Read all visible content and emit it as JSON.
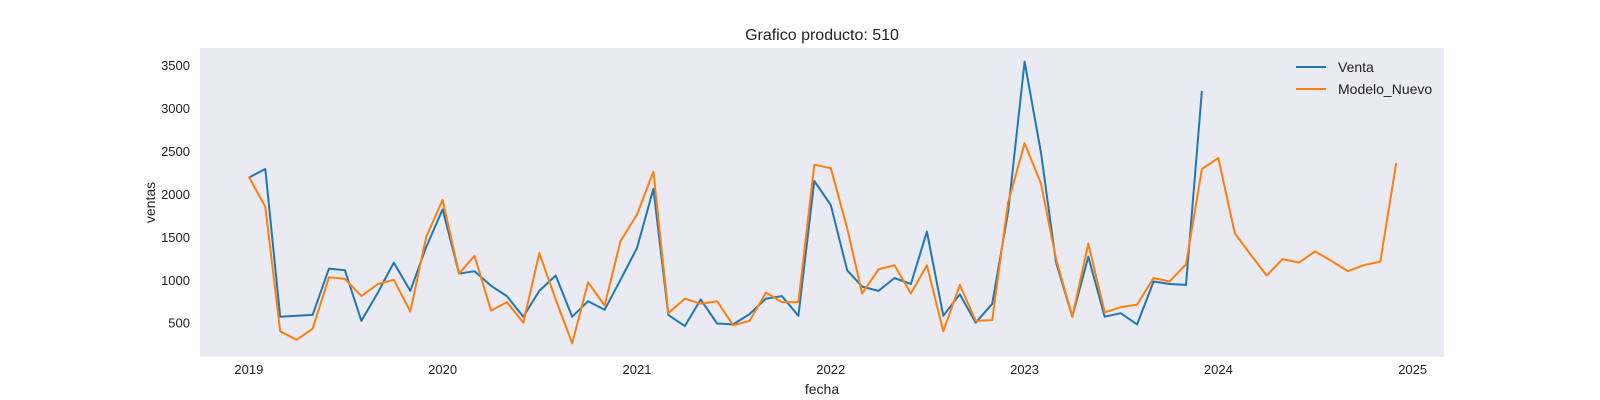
{
  "chart_data": {
    "type": "line",
    "title": "Grafico producto: 510",
    "xlabel": "fecha",
    "ylabel": "ventas",
    "x_range": [
      "2018-10-01",
      "2025-03-01"
    ],
    "ylim": [
      100,
      3700
    ],
    "x_ticks": [
      {
        "label": "2019",
        "date": "2019-01-01"
      },
      {
        "label": "2020",
        "date": "2020-01-01"
      },
      {
        "label": "2021",
        "date": "2021-01-01"
      },
      {
        "label": "2022",
        "date": "2022-01-01"
      },
      {
        "label": "2023",
        "date": "2023-01-01"
      },
      {
        "label": "2024",
        "date": "2024-01-01"
      },
      {
        "label": "2025",
        "date": "2025-01-01"
      }
    ],
    "y_ticks": [
      500,
      1000,
      1500,
      2000,
      2500,
      3000,
      3500
    ],
    "grid": false,
    "background": "#eaeaf2",
    "legend_position": "top-right",
    "series": [
      {
        "name": "Venta",
        "color": "#1f77b4",
        "x": [
          "2019-01-01",
          "2019-02-01",
          "2019-03-01",
          "2019-04-01",
          "2019-05-01",
          "2019-06-01",
          "2019-07-01",
          "2019-08-01",
          "2019-09-01",
          "2019-10-01",
          "2019-11-01",
          "2019-12-01",
          "2020-01-01",
          "2020-02-01",
          "2020-03-01",
          "2020-04-01",
          "2020-05-01",
          "2020-06-01",
          "2020-07-01",
          "2020-08-01",
          "2020-09-01",
          "2020-10-01",
          "2020-11-01",
          "2020-12-01",
          "2021-01-01",
          "2021-02-01",
          "2021-03-01",
          "2021-04-01",
          "2021-05-01",
          "2021-06-01",
          "2021-07-01",
          "2021-08-01",
          "2021-09-01",
          "2021-10-01",
          "2021-11-01",
          "2021-12-01",
          "2022-01-01",
          "2022-02-01",
          "2022-03-01",
          "2022-04-01",
          "2022-05-01",
          "2022-06-01",
          "2022-07-01",
          "2022-08-01",
          "2022-09-01",
          "2022-10-01",
          "2022-11-01",
          "2022-12-01",
          "2023-01-01",
          "2023-02-01",
          "2023-03-01",
          "2023-04-01",
          "2023-05-01",
          "2023-06-01",
          "2023-07-01",
          "2023-08-01",
          "2023-09-01",
          "2023-10-01",
          "2023-11-01",
          "2023-12-01"
        ],
        "y": [
          2190,
          2290,
          570,
          580,
          590,
          1130,
          1110,
          520,
          850,
          1200,
          870,
          1380,
          1820,
          1070,
          1100,
          930,
          810,
          570,
          870,
          1050,
          570,
          750,
          650,
          1000,
          1370,
          2060,
          590,
          460,
          770,
          490,
          480,
          600,
          780,
          810,
          580,
          2150,
          1870,
          1110,
          920,
          870,
          1020,
          950,
          1560,
          580,
          830,
          500,
          720,
          1790,
          3540,
          2480,
          1210,
          570,
          1270,
          570,
          610,
          480,
          980,
          950,
          940,
          3200
        ]
      },
      {
        "name": "Modelo_Nuevo",
        "color": "#ff7f0e",
        "x": [
          "2019-01-01",
          "2019-02-01",
          "2019-03-01",
          "2019-04-01",
          "2019-05-01",
          "2019-06-01",
          "2019-07-01",
          "2019-08-01",
          "2019-09-01",
          "2019-10-01",
          "2019-11-01",
          "2019-12-01",
          "2020-01-01",
          "2020-02-01",
          "2020-03-01",
          "2020-04-01",
          "2020-05-01",
          "2020-06-01",
          "2020-07-01",
          "2020-08-01",
          "2020-09-01",
          "2020-10-01",
          "2020-11-01",
          "2020-12-01",
          "2021-01-01",
          "2021-02-01",
          "2021-03-01",
          "2021-04-01",
          "2021-05-01",
          "2021-06-01",
          "2021-07-01",
          "2021-08-01",
          "2021-09-01",
          "2021-10-01",
          "2021-11-01",
          "2021-12-01",
          "2022-01-01",
          "2022-02-01",
          "2022-03-01",
          "2022-04-01",
          "2022-05-01",
          "2022-06-01",
          "2022-07-01",
          "2022-08-01",
          "2022-09-01",
          "2022-10-01",
          "2022-11-01",
          "2022-12-01",
          "2023-01-01",
          "2023-02-01",
          "2023-03-01",
          "2023-04-01",
          "2023-05-01",
          "2023-06-01",
          "2023-07-01",
          "2023-08-01",
          "2023-09-01",
          "2023-10-01",
          "2023-11-01",
          "2023-12-01",
          "2024-01-01",
          "2024-02-01",
          "2024-03-01",
          "2024-04-01",
          "2024-05-01",
          "2024-06-01",
          "2024-07-01",
          "2024-08-01",
          "2024-09-01",
          "2024-10-01",
          "2024-11-01",
          "2024-12-01"
        ],
        "y": [
          2200,
          1850,
          400,
          300,
          430,
          1030,
          1010,
          810,
          950,
          1000,
          630,
          1500,
          1930,
          1070,
          1280,
          640,
          740,
          500,
          1310,
          770,
          260,
          970,
          700,
          1450,
          1760,
          2260,
          610,
          780,
          720,
          750,
          470,
          520,
          850,
          740,
          740,
          2340,
          2300,
          1600,
          840,
          1120,
          1170,
          840,
          1170,
          400,
          940,
          520,
          530,
          1900,
          2590,
          2120,
          1250,
          570,
          1420,
          620,
          680,
          710,
          1020,
          980,
          1180,
          2290,
          2420,
          1540,
          1300,
          1050,
          1240,
          1200,
          1330,
          1220,
          1100,
          1170,
          1210,
          2360
        ]
      }
    ]
  }
}
